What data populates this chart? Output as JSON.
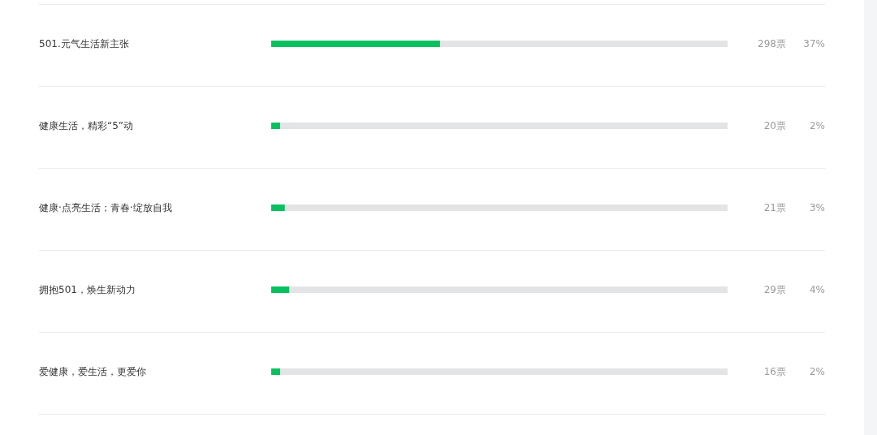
{
  "chart_data": {
    "type": "bar",
    "orientation": "horizontal",
    "stacked": true,
    "categories": [
      "501.元气生活新主张",
      "健康生活，精彩“5”动",
      "健康·点亮生活；青春·绽放自我",
      "拥抱501，焕生新动力",
      "爱健康，爱生活，更爱你"
    ],
    "series": [
      {
        "color": "#07c160",
        "values": [
          37,
          2,
          3,
          4,
          2
        ],
        "value_labels": [
          "37%",
          "2%",
          "3%",
          "4%",
          "2%"
        ]
      },
      {
        "color": "#e3e4e5",
        "values": [
          63,
          98,
          97,
          96,
          98
        ]
      }
    ],
    "xlim": [
      0,
      100
    ],
    "tick_labels": "y",
    "annotations": [
      "298票",
      "20票",
      "21票",
      "29票",
      "16票"
    ]
  }
}
